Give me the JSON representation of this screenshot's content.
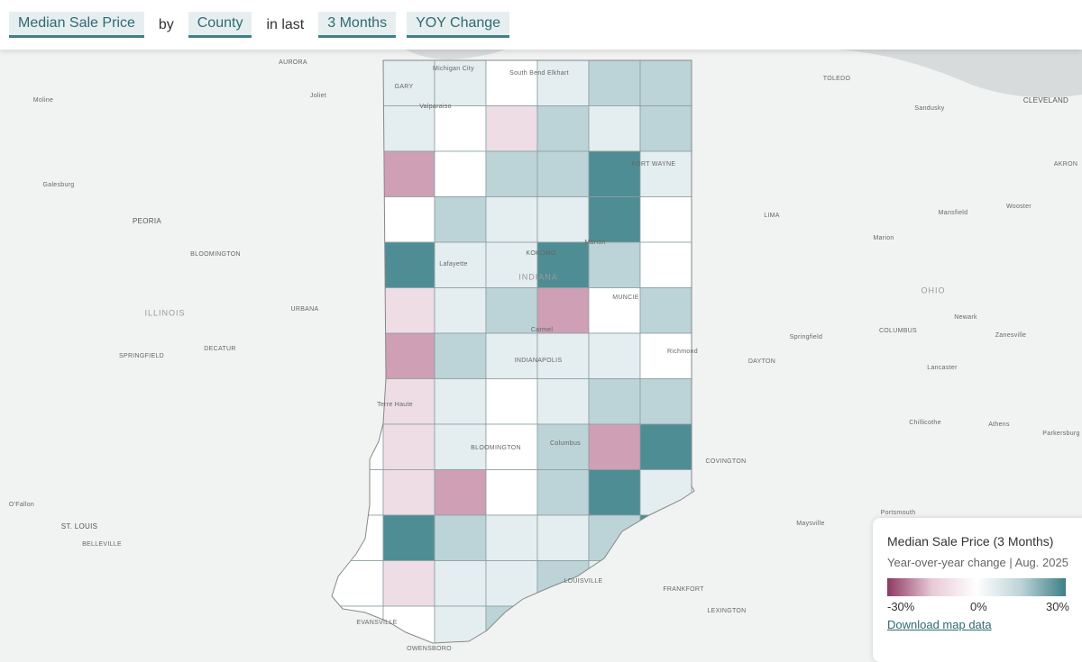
{
  "header": {
    "metric": "Median Sale Price",
    "by": "by",
    "region": "County",
    "in_last": "in last",
    "period": "3 Months",
    "change": "YOY Change"
  },
  "map": {
    "labels": [
      "AURORA",
      "Joliet",
      "Moline",
      "Galesburg",
      "PEORIA",
      "BLOOMINGTON",
      "ILLINOIS",
      "URBANA",
      "DECATUR",
      "SPRINGFIELD",
      "O'Fallon",
      "ST. LOUIS",
      "BELLEVILLE",
      "GARY",
      "Michigan City",
      "Valparaiso",
      "South Bend Elkhart",
      "TOLEDO",
      "Sandusky",
      "CLEVELAND",
      "FORT WAYNE",
      "AKRON",
      "LIMA",
      "Wooster",
      "Mansfield",
      "Marion",
      "Marion",
      "KOKOMO",
      "Lafayette",
      "INDIANA",
      "MUNCIE",
      "OHIO",
      "Newark",
      "Carmel",
      "COLUMBUS",
      "Zanesville",
      "Springfield",
      "Richmond",
      "DAYTON",
      "INDIANAPOLIS",
      "Lancaster",
      "Terre Haute",
      "Chillicothe",
      "Athens",
      "Columbus",
      "BLOOMINGTON",
      "Parkersburg",
      "COVINGTON",
      "Portsmouth",
      "Maysville",
      "LOUISVILLE",
      "FRANKFORT",
      "EVANSVILLE",
      "LEXINGTON",
      "OWENSBORO"
    ]
  },
  "legend": {
    "title": "Median Sale Price (3 Months)",
    "subtitle": "Year-over-year change | Aug. 2025",
    "min": "-30%",
    "mid": "0%",
    "max": "30%",
    "link": "Download map data"
  }
}
